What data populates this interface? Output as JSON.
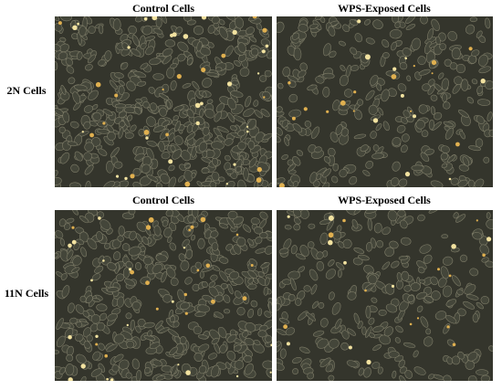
{
  "figure": {
    "rows": [
      {
        "label": "2N Cells",
        "panels": [
          {
            "title": "Control Cells"
          },
          {
            "title": "WPS-Exposed Cells"
          }
        ]
      },
      {
        "label": "11N Cells",
        "panels": [
          {
            "title": "Control Cells"
          },
          {
            "title": "WPS-Exposed Cells"
          }
        ]
      }
    ]
  }
}
